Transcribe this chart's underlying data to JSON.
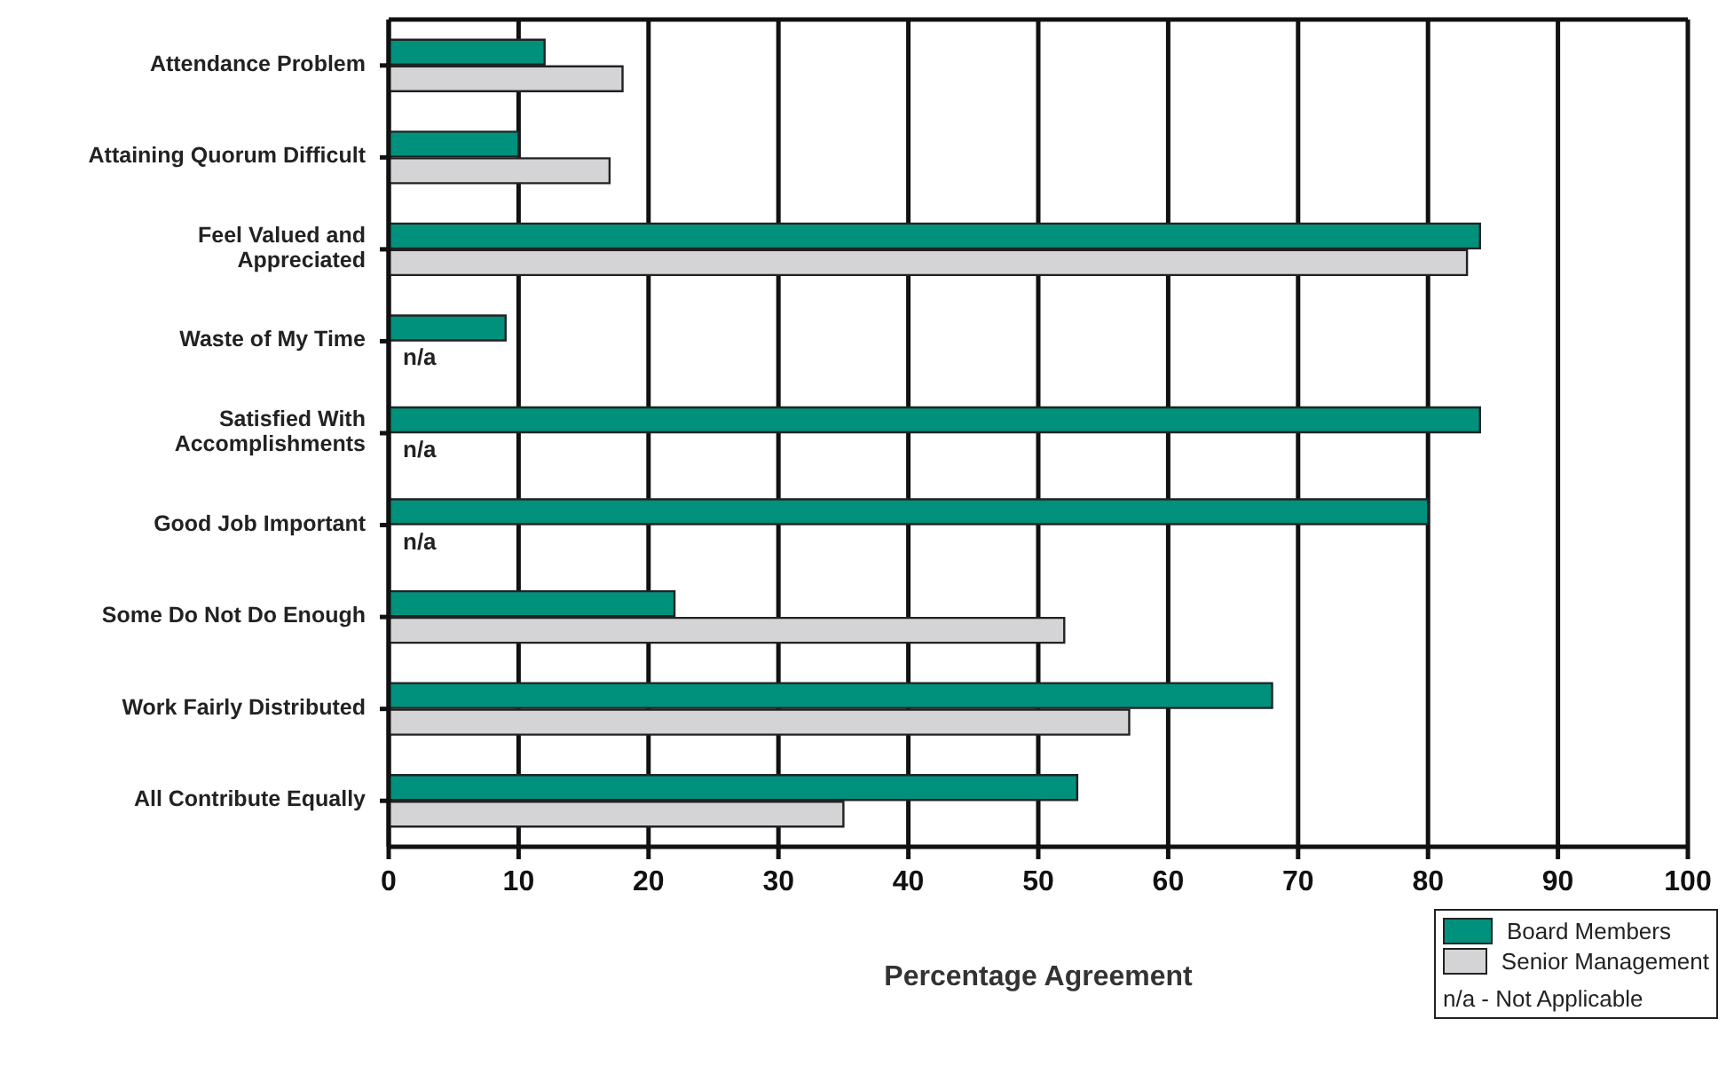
{
  "chart_data": {
    "type": "bar",
    "orientation": "horizontal",
    "xlabel": "Percentage Agreement",
    "categories": [
      "Attendance Problem",
      "Attaining Quorum Difficult",
      "Feel Valued and Appreciated",
      "Waste of My Time",
      "Satisfied With Accomplishments",
      "Good Job Important",
      "Some Do Not Do Enough",
      "Work Fairly Distributed",
      "All Contribute Equally"
    ],
    "series": [
      {
        "name": "Board Members",
        "color": "#00917d",
        "values": [
          12,
          10,
          84,
          9,
          84,
          80,
          22,
          68,
          53
        ]
      },
      {
        "name": "Senior Management",
        "color": "#d4d4d6",
        "values": [
          18,
          17,
          83,
          null,
          null,
          null,
          52,
          57,
          35
        ],
        "value_labels": [
          null,
          null,
          null,
          "n/a",
          "n/a",
          "n/a",
          null,
          null,
          null
        ]
      }
    ],
    "xlim": [
      0,
      100
    ],
    "xticks": [
      0,
      10,
      20,
      30,
      40,
      50,
      60,
      70,
      80,
      90,
      100
    ],
    "grid": "x",
    "legend": "bottom right",
    "annotations": [
      "n/a - Not Applicable"
    ]
  }
}
